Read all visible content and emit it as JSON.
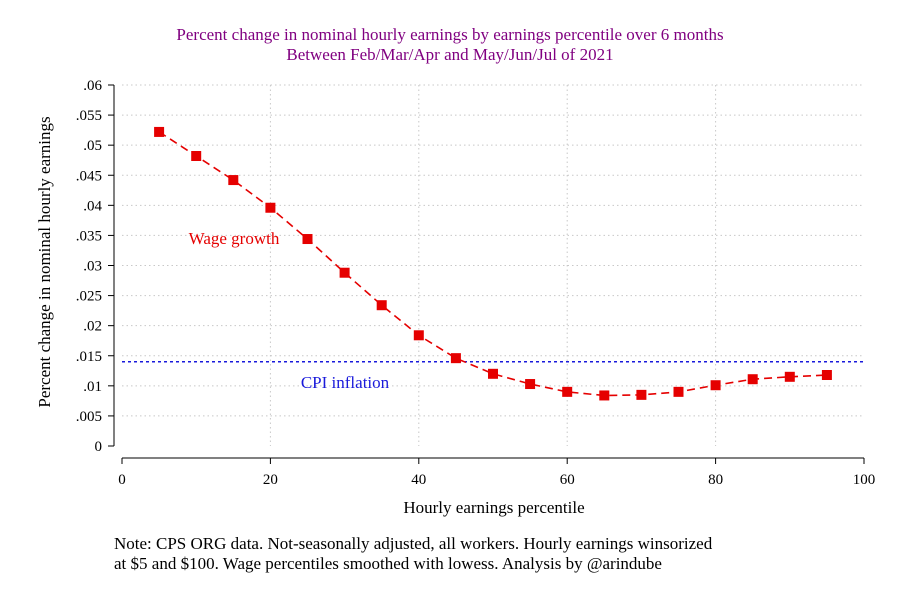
{
  "colors": {
    "title": "#800080",
    "wage": "#e50000",
    "cpi": "#1a1adb",
    "grid": "#c8c8c8",
    "axis": "#000000"
  },
  "note": {
    "line1": "Note: CPS ORG data. Not-seasonally adjusted, all workers. Hourly earnings winsorized",
    "line2": "at $5 and $100. Wage percentiles smoothed with lowess. Analysis by @arindube"
  },
  "chart_data": {
    "type": "line",
    "title": "Percent change in nominal hourly earnings by earnings percentile over 6 months",
    "subtitle": "Between Feb/Mar/Apr and May/Jun/Jul of 2021",
    "xlabel": "Hourly earnings percentile",
    "ylabel": "Percent change in nominal hourly earnings",
    "xlim": [
      0,
      100
    ],
    "ylim": [
      0,
      0.06
    ],
    "x_ticks": [
      0,
      20,
      40,
      60,
      80,
      100
    ],
    "x_tick_labels": [
      "0",
      "20",
      "40",
      "60",
      "80",
      "100"
    ],
    "y_ticks": [
      0,
      0.005,
      0.01,
      0.015,
      0.02,
      0.025,
      0.03,
      0.035,
      0.04,
      0.045,
      0.05,
      0.055,
      0.06
    ],
    "y_tick_labels": [
      "0",
      ".005",
      ".01",
      ".015",
      ".02",
      ".025",
      ".03",
      ".035",
      ".04",
      ".045",
      ".05",
      ".055",
      ".06"
    ],
    "grid": true,
    "legend": "none",
    "series": [
      {
        "name": "Wage growth",
        "style": "dashed line with square markers",
        "x": [
          5,
          10,
          15,
          20,
          25,
          30,
          35,
          40,
          45,
          50,
          55,
          60,
          65,
          70,
          75,
          80,
          85,
          90,
          95
        ],
        "y": [
          0.0522,
          0.0482,
          0.0442,
          0.0396,
          0.0344,
          0.0288,
          0.0234,
          0.0184,
          0.0146,
          0.012,
          0.0103,
          0.009,
          0.0084,
          0.0085,
          0.009,
          0.0101,
          0.0111,
          0.0115,
          0.0118
        ]
      },
      {
        "name": "CPI inflation",
        "style": "dashed horizontal reference line",
        "y": 0.014
      }
    ]
  }
}
